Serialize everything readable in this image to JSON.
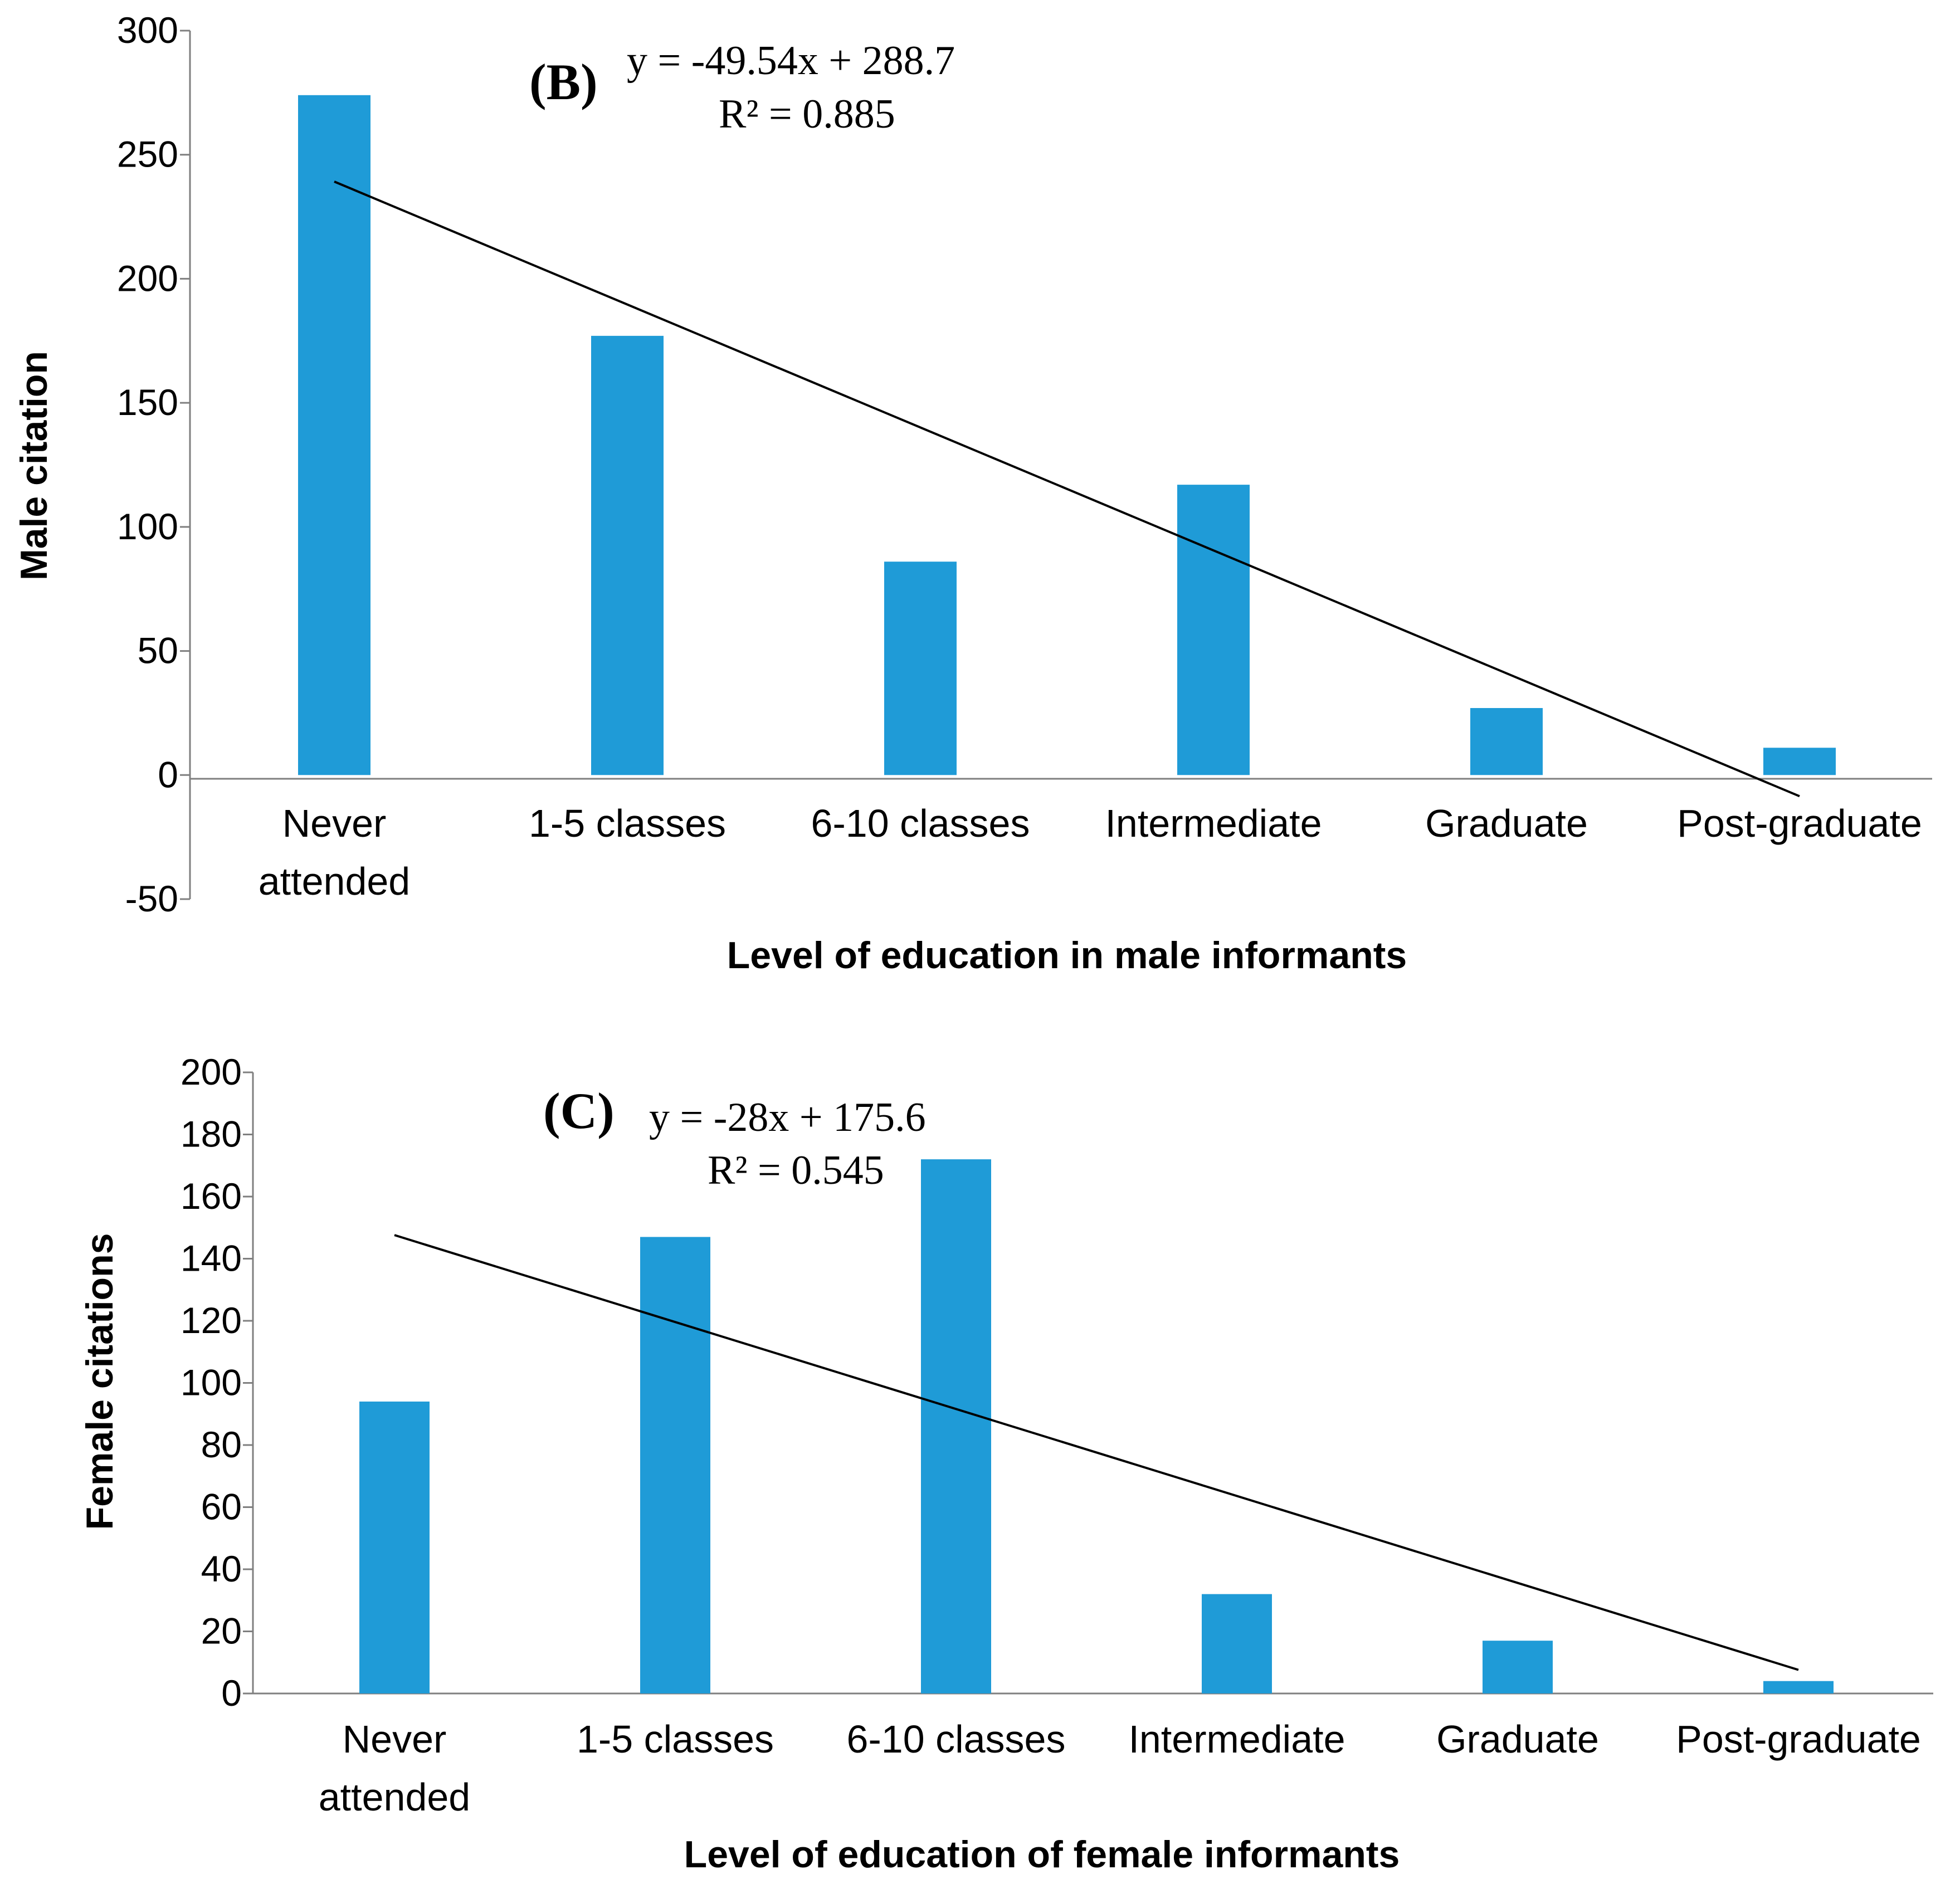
{
  "chart_data": [
    {
      "type": "bar",
      "panel_label": "(B)",
      "equation": "y = -49.54x + 288.7",
      "r_squared": "R² = 0.885",
      "categories": [
        "Never attended",
        "1-5 classes",
        "6-10 classes",
        "Intermediate",
        "Graduate",
        "Post-graduate"
      ],
      "category_lines": [
        [
          "Never",
          "attended"
        ],
        [
          "1-5 classes"
        ],
        [
          "6-10 classes"
        ],
        [
          "Intermediate"
        ],
        [
          "Graduate"
        ],
        [
          "Post-graduate"
        ]
      ],
      "values": [
        274,
        177,
        86,
        117,
        27,
        11
      ],
      "ylim": [
        -50,
        300
      ],
      "yticks": [
        -50,
        0,
        50,
        100,
        150,
        200,
        250,
        300
      ],
      "ylabel": "Male citation",
      "xlabel": "Level of education in male informants",
      "trendline": {
        "slope": -49.54,
        "intercept": 288.7
      },
      "bar_color": "#1f9bd7",
      "grid": false
    },
    {
      "type": "bar",
      "panel_label": "(C)",
      "equation": "y = -28x + 175.6",
      "r_squared": "R² = 0.545",
      "categories": [
        "Never attended",
        "1-5 classes",
        "6-10 classes",
        "Intermediate",
        "Graduate",
        "Post-graduate"
      ],
      "category_lines": [
        [
          "Never",
          "attended"
        ],
        [
          "1-5 classes"
        ],
        [
          "6-10 classes"
        ],
        [
          "Intermediate"
        ],
        [
          "Graduate"
        ],
        [
          "Post-graduate"
        ]
      ],
      "values": [
        94,
        147,
        172,
        32,
        17,
        4
      ],
      "ylim": [
        0,
        200
      ],
      "yticks": [
        0,
        20,
        40,
        60,
        80,
        100,
        120,
        140,
        160,
        180,
        200
      ],
      "ylabel": "Female citations",
      "xlabel": "Level of education of female informants",
      "trendline": {
        "slope": -28,
        "intercept": 175.6
      },
      "bar_color": "#1f9bd7",
      "grid": false
    }
  ]
}
